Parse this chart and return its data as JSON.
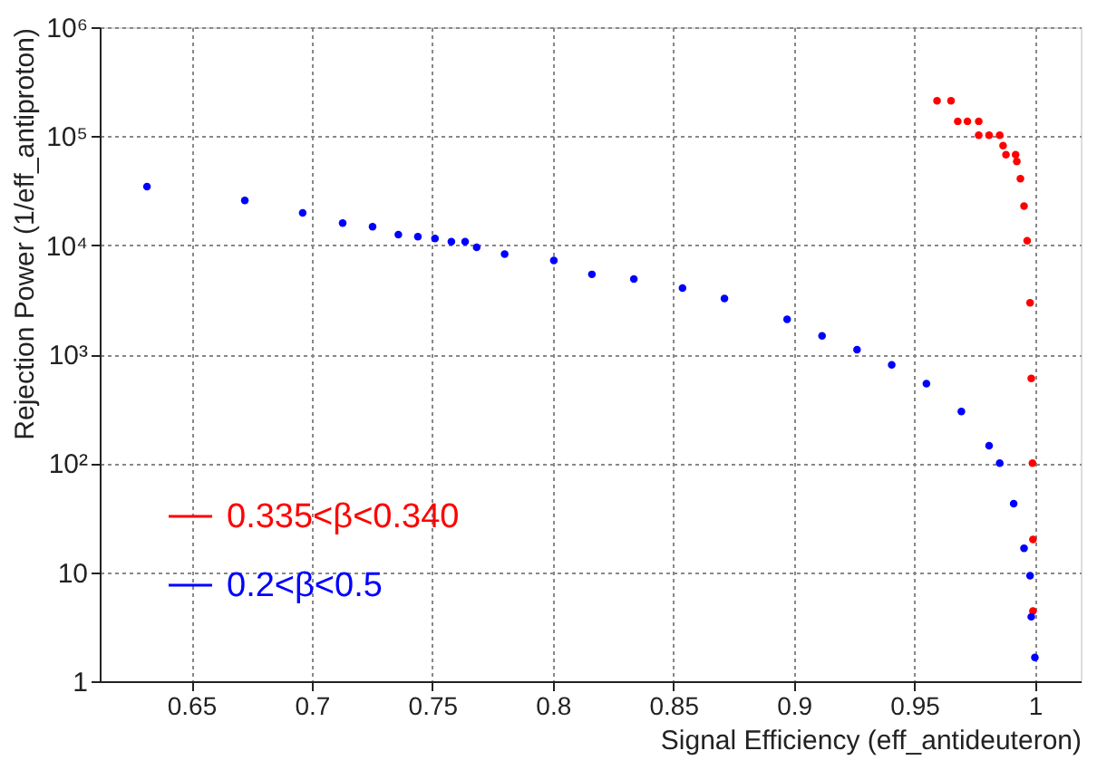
{
  "chart_data": {
    "type": "scatter",
    "xlabel": "Signal Efficiency (eff_antideuteron)",
    "ylabel": "Rejection Power (1/eff_antiproton)",
    "xlim": [
      0.612,
      1.019
    ],
    "xticks": [
      0.65,
      0.7,
      0.75,
      0.8,
      0.85,
      0.9,
      0.95,
      1
    ],
    "ylim": [
      1,
      1000000
    ],
    "yticks": [
      1,
      10,
      {
        "value": 100,
        "label": "10²"
      },
      {
        "value": 1000,
        "label": "10³"
      },
      {
        "value": 10000,
        "label": "10⁴"
      },
      {
        "value": 100000,
        "label": "10⁵"
      },
      {
        "value": 1000000,
        "label": "10⁶"
      }
    ],
    "log": "y",
    "grid": true,
    "legend": "bottom left",
    "marker": "circle",
    "series": [
      {
        "name": "0.335<β<0.340",
        "color": "#ff0000",
        "x": [
          0.9594,
          0.9652,
          0.968,
          0.972,
          0.9767,
          0.9767,
          0.981,
          0.9854,
          0.9868,
          0.988,
          0.992,
          0.9925,
          0.994,
          0.9955,
          0.9968,
          0.998,
          0.9985,
          0.999,
          0.9992,
          0.9992
        ],
        "values": [
          211000,
          211000,
          137000,
          137000,
          137000,
          102000,
          102000,
          102000,
          82000,
          67700,
          67700,
          58700,
          40800,
          22800,
          11000,
          2960,
          600,
          100,
          20,
          4.4
        ]
      },
      {
        "name": "0.2<β<0.5",
        "color": "#0000ff",
        "x": [
          0.6316,
          0.6722,
          0.6962,
          0.7128,
          0.7252,
          0.7359,
          0.744,
          0.7511,
          0.7579,
          0.7636,
          0.7684,
          0.78,
          0.8004,
          0.8162,
          0.8336,
          0.8538,
          0.8712,
          0.8972,
          0.9117,
          0.9262,
          0.9406,
          0.955,
          0.9695,
          0.981,
          0.9854,
          0.9912,
          0.9955,
          0.998,
          0.9985,
          1.0
        ],
        "values": [
          34400,
          25700,
          19800,
          15960,
          14800,
          12500,
          11950,
          11500,
          10800,
          10800,
          9560,
          8300,
          7240,
          5400,
          4900,
          4050,
          3240,
          2090,
          1470,
          1100,
          800,
          537,
          298,
          145,
          100,
          42.6,
          16.6,
          9.3,
          3.9,
          1.65
        ]
      }
    ]
  }
}
